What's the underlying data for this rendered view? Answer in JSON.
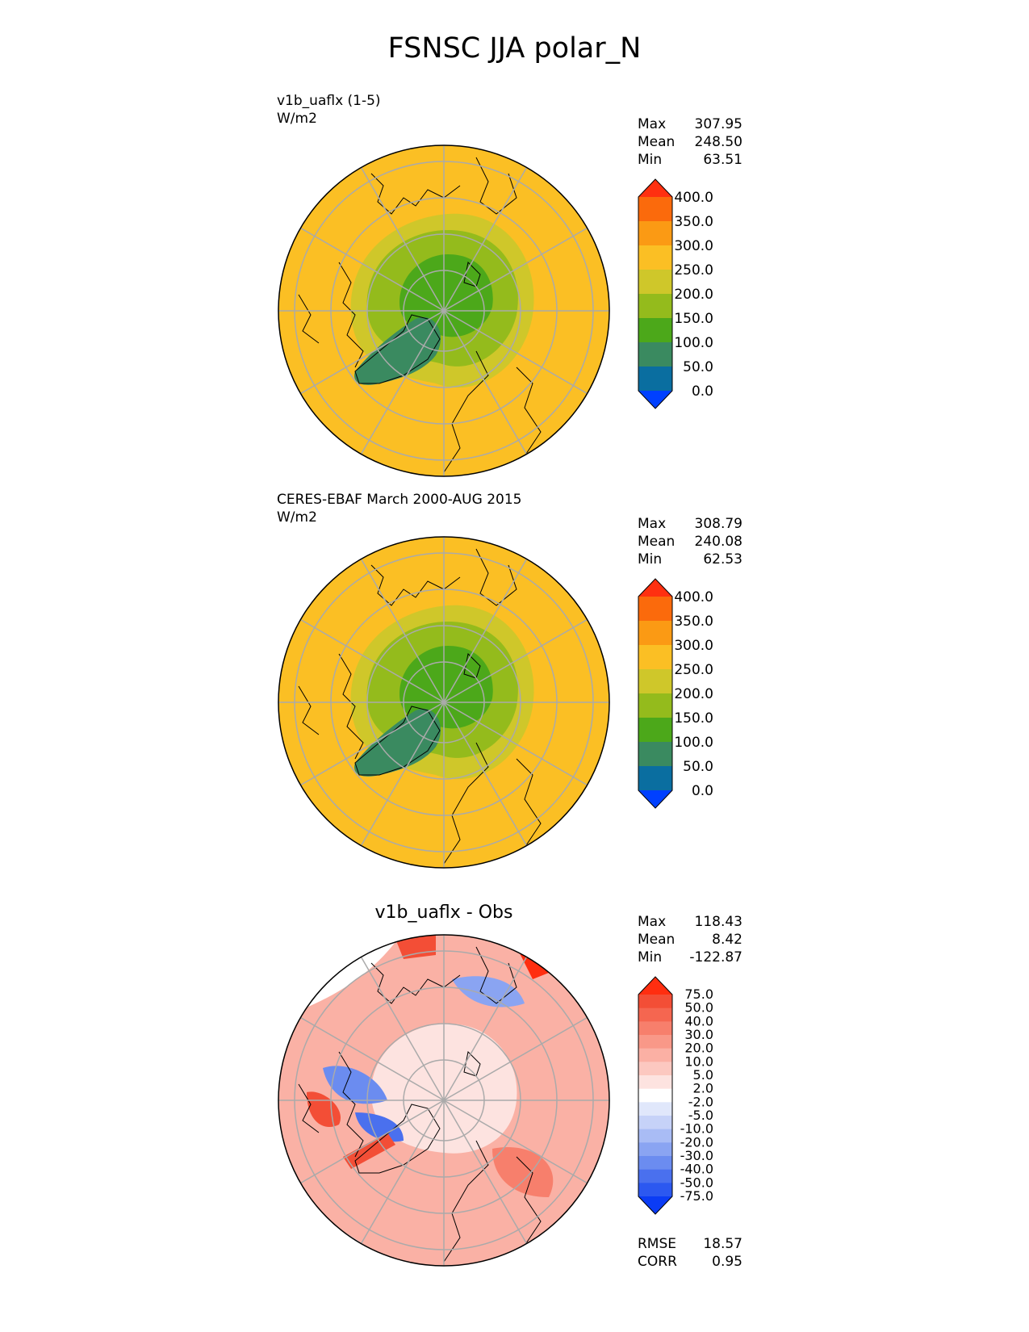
{
  "title": "FSNSC JJA polar_N",
  "panels": [
    {
      "id": "model",
      "subtitle_line1": "v1b_uaflx (1-5)",
      "subtitle_line2": "W/m2",
      "stats": {
        "max_label": "Max",
        "max": "307.95",
        "mean_label": "Mean",
        "mean": "248.50",
        "min_label": "Min",
        "min": "63.51"
      },
      "colorbar": {
        "levels": [
          "0.0",
          "50.0",
          "100.0",
          "150.0",
          "200.0",
          "250.0",
          "300.0",
          "350.0",
          "400.0"
        ],
        "colors": [
          "#0040ff",
          "#0a6ea0",
          "#3a8a60",
          "#4ca81a",
          "#94bb1c",
          "#cfc72a",
          "#fbbf24",
          "#fb9a14",
          "#fb6a0c",
          "#ff3010"
        ]
      }
    },
    {
      "id": "obs",
      "subtitle_line1": "CERES-EBAF March 2000-AUG 2015",
      "subtitle_line2": "W/m2",
      "stats": {
        "max_label": "Max",
        "max": "308.79",
        "mean_label": "Mean",
        "mean": "240.08",
        "min_label": "Min",
        "min": "62.53"
      },
      "colorbar": {
        "levels": [
          "0.0",
          "50.0",
          "100.0",
          "150.0",
          "200.0",
          "250.0",
          "300.0",
          "350.0",
          "400.0"
        ],
        "colors": [
          "#0040ff",
          "#0a6ea0",
          "#3a8a60",
          "#4ca81a",
          "#94bb1c",
          "#cfc72a",
          "#fbbf24",
          "#fb9a14",
          "#fb6a0c",
          "#ff3010"
        ]
      }
    },
    {
      "id": "diff",
      "subtitle": "v1b_uaflx - Obs",
      "stats": {
        "max_label": "Max",
        "max": "118.43",
        "mean_label": "Mean",
        "mean": "8.42",
        "min_label": "Min",
        "min": "-122.87"
      },
      "metrics": {
        "rmse_label": "RMSE",
        "rmse": "18.57",
        "corr_label": "CORR",
        "corr": "0.95"
      },
      "colorbar": {
        "levels": [
          "-75.0",
          "-50.0",
          "-40.0",
          "-30.0",
          "-20.0",
          "-10.0",
          "-5.0",
          "-2.0",
          "2.0",
          "5.0",
          "10.0",
          "20.0",
          "30.0",
          "40.0",
          "50.0",
          "75.0"
        ],
        "colors": [
          "#0b3cf5",
          "#2c58f0",
          "#4a70ee",
          "#6b8cf0",
          "#8aa4f2",
          "#a9bcf5",
          "#c6d2f8",
          "#e0e7fb",
          "#ffffff",
          "#fde3e0",
          "#fcc8c0",
          "#fbb0a4",
          "#f99888",
          "#f77f6c",
          "#f56650",
          "#f34e36",
          "#ff2e10"
        ]
      }
    }
  ]
}
